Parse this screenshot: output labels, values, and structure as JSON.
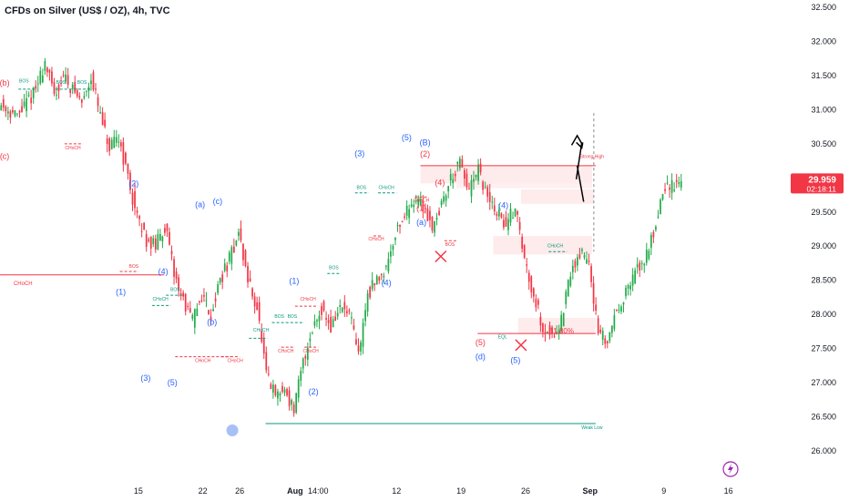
{
  "header": {
    "title": "CFDs on Silver (US$ / OZ), 4h, TVC"
  },
  "colors": {
    "up": "#22ab4a",
    "down": "#f23645",
    "wave_blue": "#2962ff",
    "wave_red": "#f23645",
    "smc_green": "#089981",
    "text": "#131722"
  },
  "chart_data": {
    "type": "candlestick",
    "symbol": "CFDs on Silver (US$ / OZ)",
    "timeframe": "4h",
    "source": "TVC",
    "ylim": [
      26.0,
      32.5
    ],
    "y_ticks": [
      "32.500",
      "32.000",
      "31.500",
      "31.000",
      "30.500",
      "30.000",
      "29.500",
      "29.000",
      "28.500",
      "28.000",
      "27.500",
      "27.000",
      "26.500",
      "26.000"
    ],
    "x_ticks": [
      {
        "label": "15",
        "x": 15
      },
      {
        "label": "22",
        "x": 22
      },
      {
        "label": "26",
        "x": 26
      },
      {
        "label": "Aug",
        "x": 32,
        "bold": true
      },
      {
        "label": "14:00",
        "x": 34.5
      },
      {
        "label": "12",
        "x": 43
      },
      {
        "label": "19",
        "x": 50
      },
      {
        "label": "26",
        "x": 57
      },
      {
        "label": "Sep",
        "x": 64,
        "bold": true
      },
      {
        "label": "9",
        "x": 72
      },
      {
        "label": "16",
        "x": 79
      }
    ],
    "last_price": {
      "value": "29.959",
      "countdown": "02:18:11"
    },
    "price_path": [
      [
        0,
        31.1
      ],
      [
        2,
        30.9
      ],
      [
        4,
        31.3
      ],
      [
        5,
        31.7
      ],
      [
        6,
        31.2
      ],
      [
        7,
        31.5
      ],
      [
        9,
        31.1
      ],
      [
        10,
        31.5
      ],
      [
        11,
        30.9
      ],
      [
        12,
        30.4
      ],
      [
        13,
        30.6
      ],
      [
        14,
        30.0
      ],
      [
        15,
        29.4
      ],
      [
        16,
        29.1
      ],
      [
        17,
        29.0
      ],
      [
        18,
        29.3
      ],
      [
        19,
        28.6
      ],
      [
        20,
        28.2
      ],
      [
        21,
        27.9
      ],
      [
        22,
        28.3
      ],
      [
        23,
        28.0
      ],
      [
        24,
        28.5
      ],
      [
        25,
        28.8
      ],
      [
        26,
        29.2
      ],
      [
        27,
        28.5
      ],
      [
        28,
        28.1
      ],
      [
        29,
        27.1
      ],
      [
        30,
        26.8
      ],
      [
        31,
        26.9
      ],
      [
        32,
        26.6
      ],
      [
        33,
        27.3
      ],
      [
        34,
        27.8
      ],
      [
        35,
        28.1
      ],
      [
        36,
        27.8
      ],
      [
        37,
        28.1
      ],
      [
        38,
        28.0
      ],
      [
        39,
        27.4
      ],
      [
        40,
        28.3
      ],
      [
        42,
        28.7
      ],
      [
        43,
        29.2
      ],
      [
        45,
        29.7
      ],
      [
        46,
        29.6
      ],
      [
        47,
        29.3
      ],
      [
        48,
        29.6
      ],
      [
        49,
        30.0
      ],
      [
        50,
        30.2
      ],
      [
        51,
        29.8
      ],
      [
        52,
        30.1
      ],
      [
        53,
        29.7
      ],
      [
        54,
        29.5
      ],
      [
        55,
        29.3
      ],
      [
        56,
        29.6
      ],
      [
        57,
        28.8
      ],
      [
        58,
        28.3
      ],
      [
        59,
        27.8
      ],
      [
        60,
        27.7
      ],
      [
        61,
        27.9
      ],
      [
        62,
        28.6
      ],
      [
        63,
        28.9
      ],
      [
        64,
        28.8
      ],
      [
        65,
        27.7
      ],
      [
        66,
        27.6
      ],
      [
        67,
        28.1
      ],
      [
        68,
        28.3
      ],
      [
        69,
        28.6
      ],
      [
        70,
        28.8
      ],
      [
        71,
        29.2
      ],
      [
        72,
        29.8
      ],
      [
        73,
        29.9
      ],
      [
        74,
        29.96
      ]
    ],
    "swing_labels": [
      {
        "text": "(b)",
        "x": 0.5,
        "y": 31.35,
        "color": "red"
      },
      {
        "text": "(c)",
        "x": 0.5,
        "y": 30.28,
        "color": "red"
      },
      {
        "text": "(2)",
        "x": 14.5,
        "y": 29.88,
        "color": "blue"
      },
      {
        "text": "(1)",
        "x": 13.1,
        "y": 28.29,
        "color": "blue"
      },
      {
        "text": "(4)",
        "x": 17.7,
        "y": 28.59,
        "color": "blue"
      },
      {
        "text": "(3)",
        "x": 15.8,
        "y": 27.03,
        "color": "blue"
      },
      {
        "text": "(5)",
        "x": 18.7,
        "y": 26.96,
        "color": "blue"
      },
      {
        "text": "(a)",
        "x": 21.7,
        "y": 29.57,
        "color": "blue"
      },
      {
        "text": "(c)",
        "x": 23.6,
        "y": 29.62,
        "color": "blue"
      },
      {
        "text": "(b)",
        "x": 23.0,
        "y": 27.85,
        "color": "blue"
      },
      {
        "text": "(1)",
        "x": 31.9,
        "y": 28.45,
        "color": "blue"
      },
      {
        "text": "(2)",
        "x": 34.0,
        "y": 26.83,
        "color": "blue"
      },
      {
        "text": "(3)",
        "x": 39.0,
        "y": 30.32,
        "color": "blue"
      },
      {
        "text": "(4)",
        "x": 41.9,
        "y": 28.42,
        "color": "blue"
      },
      {
        "text": "(5)",
        "x": 44.1,
        "y": 30.55,
        "color": "blue"
      },
      {
        "text": "(B)",
        "x": 46.1,
        "y": 30.48,
        "color": "blue"
      },
      {
        "text": "(2)",
        "x": 46.1,
        "y": 30.31,
        "color": "red"
      },
      {
        "text": "(4)",
        "x": 47.7,
        "y": 29.89,
        "color": "red"
      },
      {
        "text": "(1)",
        "x": 45.7,
        "y": 29.52,
        "color": "red"
      },
      {
        "text": "(a)",
        "x": 45.7,
        "y": 29.31,
        "color": "blue"
      },
      {
        "text": "(4)",
        "x": 54.6,
        "y": 29.56,
        "color": "blue"
      },
      {
        "text": "(5)",
        "x": 52.1,
        "y": 27.55,
        "color": "red"
      },
      {
        "text": "(d)",
        "x": 52.1,
        "y": 27.34,
        "color": "blue"
      },
      {
        "text": "(5)",
        "x": 55.9,
        "y": 27.29,
        "color": "blue"
      }
    ],
    "smc_labels": [
      {
        "text": "BOS",
        "x": 2.6,
        "y": 31.4,
        "color": "green"
      },
      {
        "text": "BOS",
        "x": 6.6,
        "y": 31.38,
        "color": "green"
      },
      {
        "text": "BOS",
        "x": 8.9,
        "y": 31.38,
        "color": "green"
      },
      {
        "text": "CHoCH",
        "x": 7.9,
        "y": 30.42,
        "color": "red"
      },
      {
        "text": "BOS",
        "x": 14.5,
        "y": 28.68,
        "color": "red"
      },
      {
        "text": "CHoCH",
        "x": 17.4,
        "y": 28.2,
        "color": "green"
      },
      {
        "text": "BOS",
        "x": 19.0,
        "y": 28.34,
        "color": "green"
      },
      {
        "text": "CHoCH",
        "x": 22.0,
        "y": 27.3,
        "color": "red"
      },
      {
        "text": "CHoCH",
        "x": 28.3,
        "y": 27.75,
        "color": "green"
      },
      {
        "text": "CHoCH",
        "x": 25.5,
        "y": 27.3,
        "color": "red"
      },
      {
        "text": "BOS",
        "x": 30.3,
        "y": 27.95,
        "color": "green"
      },
      {
        "text": "BOS",
        "x": 31.7,
        "y": 27.95,
        "color": "green"
      },
      {
        "text": "CHoCH",
        "x": 33.4,
        "y": 28.2,
        "color": "red"
      },
      {
        "text": "CHoCH",
        "x": 31.0,
        "y": 27.44,
        "color": "red"
      },
      {
        "text": "CHoCH",
        "x": 33.7,
        "y": 27.44,
        "color": "red"
      },
      {
        "text": "BOS",
        "x": 36.2,
        "y": 28.66,
        "color": "green"
      },
      {
        "text": "BOS",
        "x": 39.2,
        "y": 29.84,
        "color": "green"
      },
      {
        "text": "CHoCH",
        "x": 41.9,
        "y": 29.84,
        "color": "green"
      },
      {
        "text": "CHoCH",
        "x": 40.8,
        "y": 29.08,
        "color": "red"
      },
      {
        "text": "CHoCH",
        "x": 45.7,
        "y": 29.65,
        "color": "red"
      },
      {
        "text": "BOS",
        "x": 48.8,
        "y": 29.0,
        "color": "red"
      },
      {
        "text": "CHoCH",
        "x": 60.2,
        "y": 28.98,
        "color": "green"
      },
      {
        "text": "EQL",
        "x": 54.5,
        "y": 27.65,
        "color": "green"
      }
    ],
    "annotations": [
      {
        "text": "CHoCH",
        "x": 2.5,
        "y": 28.43,
        "color": "red"
      },
      {
        "text": "61.80%",
        "x": 60.9,
        "y": 27.72,
        "color": "red"
      },
      {
        "text": "Strong High",
        "x": 64.2,
        "y": 30.29,
        "color": "red"
      },
      {
        "text": "Weak Low",
        "x": 64.2,
        "y": 26.32,
        "color": "green"
      }
    ]
  }
}
